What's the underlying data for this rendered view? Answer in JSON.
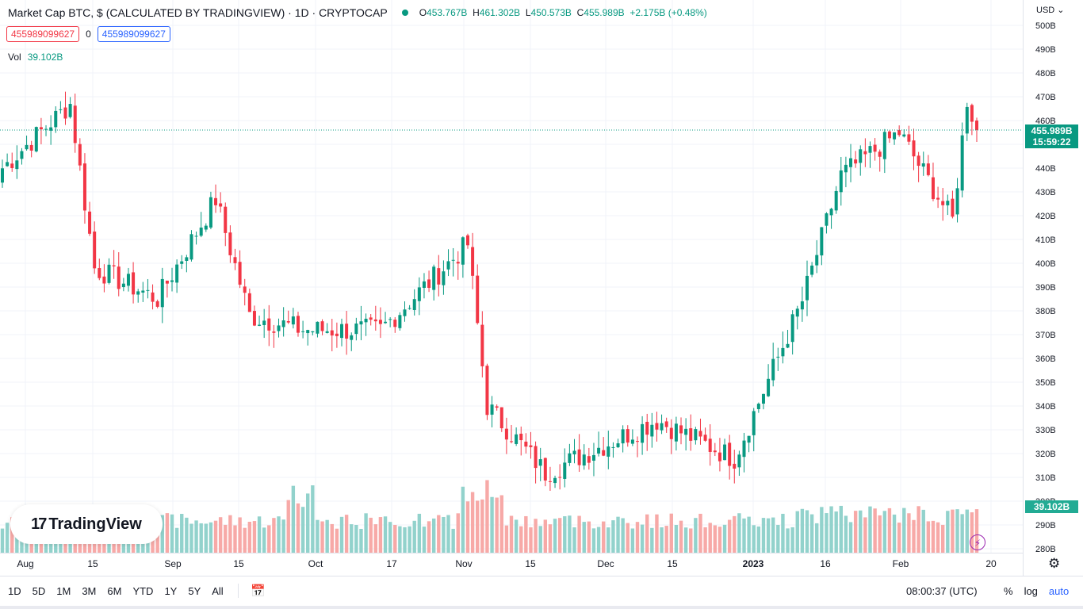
{
  "header": {
    "title": "Market Cap BTC, $ (CALCULATED BY TRADINGVIEW) · 1D · CRYPTOCAP",
    "open_label": "O",
    "open": "453.767B",
    "high_label": "H",
    "high": "461.302B",
    "low_label": "L",
    "low": "450.573B",
    "close_label": "C",
    "close": "455.989B",
    "change": "+2.175B (+0.48%)",
    "sell_value": "455989099627",
    "spread": "0",
    "buy_value": "455989099627"
  },
  "volume": {
    "label": "Vol",
    "value": "39.102B"
  },
  "price_scale": {
    "currency": "USD",
    "last_price": "455.989B",
    "countdown": "15:59:22",
    "volume_tag": "39.102B"
  },
  "logo_text": "TradingView",
  "logo_mark": "17",
  "time_ranges": [
    "1D",
    "5D",
    "1M",
    "3M",
    "6M",
    "YTD",
    "1Y",
    "5Y",
    "All"
  ],
  "clock": "08:00:37 (UTC)",
  "scale_options": {
    "percent": "%",
    "log": "log",
    "auto": "auto"
  },
  "colors": {
    "up": "#089981",
    "down": "#f23645",
    "vol_up": "#92d2cc",
    "vol_down": "#f7a9a7",
    "grid": "#f0f3fa",
    "accent": "#2962ff"
  },
  "chart_data": {
    "type": "candlestick",
    "title": "Market Cap BTC, $",
    "unit": "B USD",
    "ylim": [
      280,
      500
    ],
    "y_ticks": [
      "500B",
      "490B",
      "480B",
      "470B",
      "460B",
      "450B",
      "440B",
      "430B",
      "420B",
      "410B",
      "400B",
      "390B",
      "380B",
      "370B",
      "360B",
      "350B",
      "340B",
      "330B",
      "320B",
      "310B",
      "300B",
      "290B",
      "280B"
    ],
    "x_tick_labels": [
      "Aug",
      "15",
      "Sep",
      "15",
      "Oct",
      "17",
      "Nov",
      "15",
      "Dec",
      "15",
      "2023",
      "16",
      "Feb",
      "20"
    ],
    "key_closes": [
      {
        "date": "Aug start",
        "value": 440
      },
      {
        "date": "Aug 14",
        "value": 467
      },
      {
        "date": "Aug 19",
        "value": 398
      },
      {
        "date": "Sep 1",
        "value": 385
      },
      {
        "date": "Sep 13",
        "value": 427
      },
      {
        "date": "Sep 20",
        "value": 378
      },
      {
        "date": "Oct 17",
        "value": 372
      },
      {
        "date": "Nov 5",
        "value": 408
      },
      {
        "date": "Nov 9",
        "value": 340
      },
      {
        "date": "Nov 21",
        "value": 312
      },
      {
        "date": "Dec 14",
        "value": 334
      },
      {
        "date": "Dec 30",
        "value": 318
      },
      {
        "date": "Jan 13",
        "value": 384
      },
      {
        "date": "Jan 21",
        "value": 437
      },
      {
        "date": "Feb 2",
        "value": 455
      },
      {
        "date": "Feb 13",
        "value": 418
      },
      {
        "date": "Feb 16",
        "value": 469
      },
      {
        "date": "Feb 18",
        "value": 455.989
      }
    ],
    "last": {
      "open": 453.767,
      "high": 461.302,
      "low": 450.573,
      "close": 455.989,
      "volume": 39.102
    }
  }
}
